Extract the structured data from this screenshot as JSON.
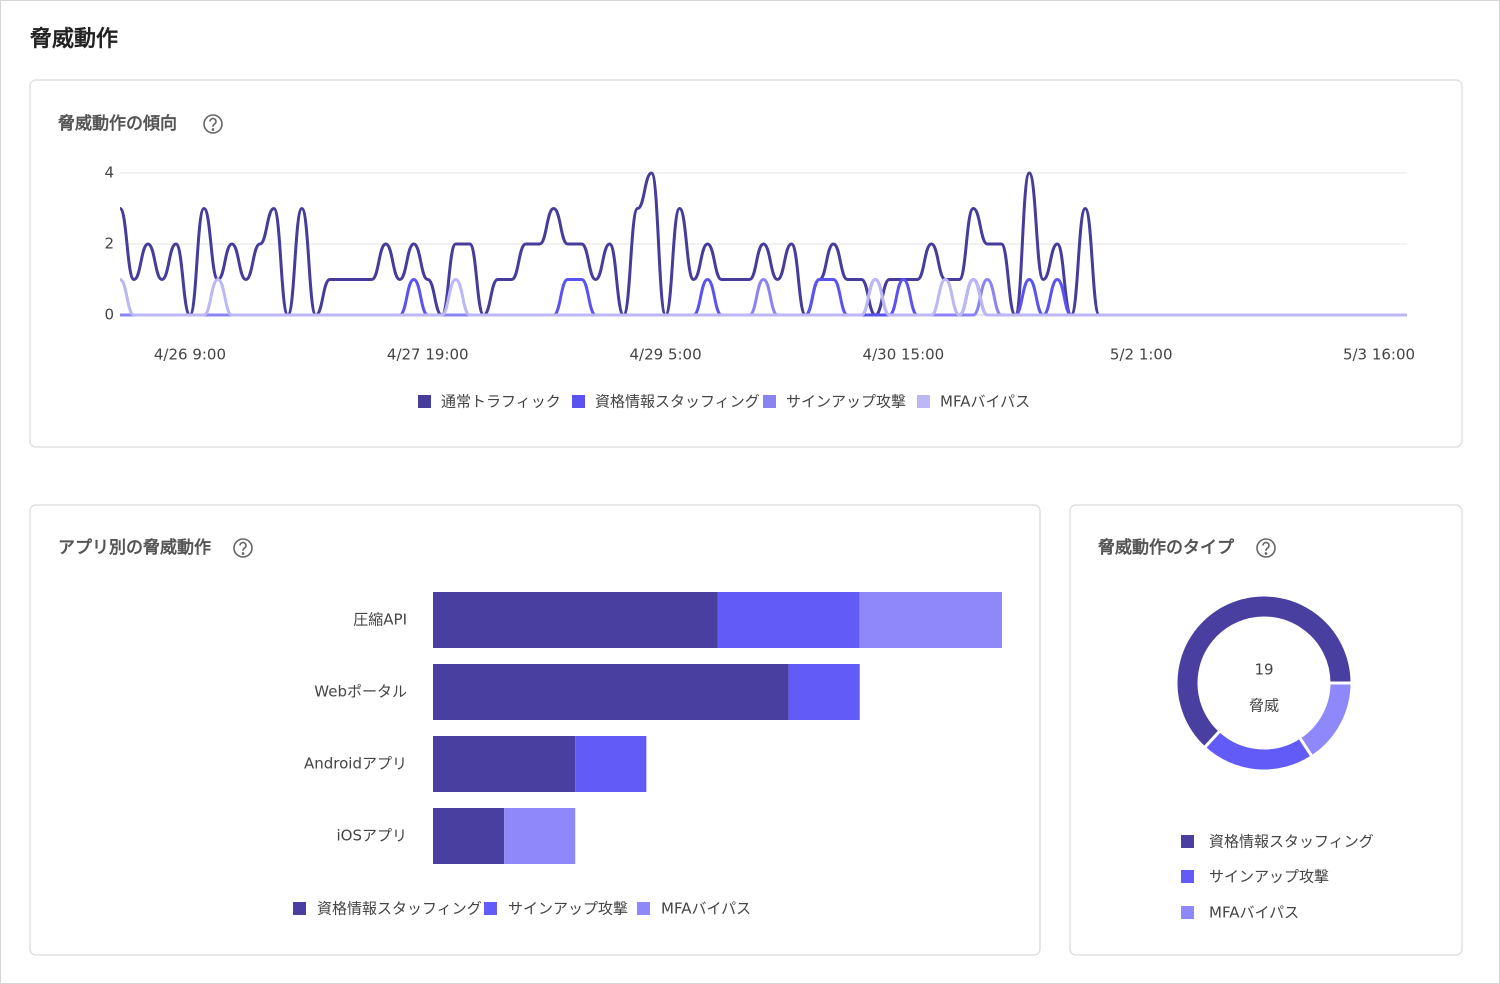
{
  "header": {
    "title": "脅威動作"
  },
  "chart_data": [
    {
      "type": "line",
      "title": "脅威動作の傾向",
      "categories": [
        null,
        null,
        null,
        null,
        null,
        "4/26 9:00",
        null,
        null,
        null,
        null,
        null,
        null,
        null,
        null,
        null,
        null,
        null,
        null,
        null,
        null,
        null,
        null,
        "4/27 19:00",
        null,
        null,
        null,
        null,
        null,
        null,
        null,
        null,
        null,
        null,
        null,
        null,
        null,
        null,
        null,
        null,
        "4/29 5:00",
        null,
        null,
        null,
        null,
        null,
        null,
        null,
        null,
        null,
        null,
        null,
        null,
        null,
        null,
        null,
        null,
        "4/30 15:00",
        null,
        null,
        null,
        null,
        null,
        null,
        null,
        null,
        null,
        null,
        null,
        null,
        null,
        null,
        null,
        null,
        "5/2 1:00",
        null,
        null,
        null,
        null,
        null,
        null,
        null,
        null,
        null,
        null,
        null,
        null,
        null,
        null,
        null,
        null,
        "5/3 16:00",
        null,
        null
      ],
      "series": [
        {
          "name": "通常トラフィック",
          "color": "#453c9c",
          "values": [
            3,
            1,
            2,
            1,
            2,
            0,
            3,
            1,
            2,
            1,
            2,
            3,
            0,
            3,
            0,
            1,
            1,
            1,
            1,
            2,
            1,
            2,
            1,
            0,
            2,
            2,
            0,
            1,
            1,
            2,
            2,
            3,
            2,
            2,
            1,
            2,
            0,
            3,
            4,
            0,
            3,
            1,
            2,
            1,
            1,
            1,
            2,
            1,
            2,
            0,
            1,
            2,
            1,
            1,
            0,
            1,
            1,
            1,
            2,
            1,
            1,
            3,
            2,
            2,
            0,
            4,
            1,
            2,
            0,
            3,
            0,
            0,
            0,
            0,
            0,
            0,
            0,
            0,
            0,
            0,
            0,
            0,
            0,
            0,
            0,
            0,
            0,
            0,
            0,
            0,
            0,
            0,
            0
          ]
        },
        {
          "name": "資格情報スタッフィング",
          "color": "#5a53f0",
          "values": [
            0,
            0,
            0,
            0,
            0,
            0,
            0,
            0,
            0,
            0,
            0,
            0,
            0,
            0,
            0,
            0,
            0,
            0,
            0,
            0,
            0,
            1,
            0,
            0,
            0,
            0,
            0,
            0,
            0,
            0,
            0,
            0,
            1,
            1,
            0,
            0,
            0,
            0,
            0,
            0,
            0,
            0,
            1,
            0,
            0,
            0,
            0,
            0,
            0,
            0,
            1,
            1,
            0,
            0,
            0,
            0,
            1,
            0,
            0,
            0,
            0,
            1,
            0,
            0,
            0,
            1,
            0,
            1,
            0,
            0,
            0,
            0,
            0,
            0,
            0,
            0,
            0,
            0,
            0,
            0,
            0,
            0,
            0,
            0,
            0,
            0,
            0,
            0,
            0,
            0,
            0,
            0,
            0
          ]
        },
        {
          "name": "サインアップ攻撃",
          "color": "#8a84f3",
          "values": [
            0,
            0,
            0,
            0,
            0,
            0,
            0,
            0,
            0,
            0,
            0,
            0,
            0,
            0,
            0,
            0,
            0,
            0,
            0,
            0,
            0,
            0,
            0,
            0,
            0,
            0,
            0,
            0,
            0,
            0,
            0,
            0,
            0,
            0,
            0,
            0,
            0,
            0,
            0,
            0,
            0,
            0,
            0,
            0,
            0,
            0,
            1,
            0,
            0,
            0,
            0,
            0,
            0,
            0,
            1,
            0,
            0,
            0,
            0,
            0,
            0,
            0,
            1,
            0,
            0,
            0,
            0,
            0,
            0,
            0,
            0,
            0,
            0,
            0,
            0,
            0,
            0,
            0,
            0,
            0,
            0,
            0,
            0,
            0,
            0,
            0,
            0,
            0,
            0,
            0,
            0,
            0,
            0
          ]
        },
        {
          "name": "MFAバイパス",
          "color": "#bcb7f5",
          "values": [
            1,
            0,
            0,
            0,
            0,
            0,
            0,
            1,
            0,
            0,
            0,
            0,
            0,
            0,
            0,
            0,
            0,
            0,
            0,
            0,
            0,
            0,
            0,
            0,
            1,
            0,
            0,
            0,
            0,
            0,
            0,
            0,
            0,
            0,
            0,
            0,
            0,
            0,
            0,
            0,
            0,
            0,
            0,
            0,
            0,
            0,
            0,
            0,
            0,
            0,
            0,
            0,
            0,
            0,
            1,
            0,
            0,
            0,
            0,
            1,
            0,
            1,
            0,
            0,
            0,
            0,
            0,
            0,
            0,
            0,
            0,
            0,
            0,
            0,
            0,
            0,
            0,
            0,
            0,
            0,
            0,
            0,
            0,
            0,
            0,
            0,
            0,
            0,
            0,
            0,
            0,
            0,
            0
          ]
        }
      ],
      "ylim": [
        0,
        4
      ],
      "yticks": [
        0,
        2,
        4
      ],
      "grid": true
    },
    {
      "type": "stacked-bar",
      "title": "アプリ別の脅威動作",
      "orientation": "horizontal",
      "categories": [
        "圧縮API",
        "Webポータル",
        "Androidアプリ",
        "iOSアプリ"
      ],
      "series": [
        {
          "name": "資格情報スタッフィング",
          "color": "#483fa0",
          "values": [
            4,
            5,
            2,
            1
          ]
        },
        {
          "name": "サインアップ攻撃",
          "color": "#625bf8",
          "values": [
            2,
            1,
            1,
            0
          ]
        },
        {
          "name": "MFAバイパス",
          "color": "#8f88fb",
          "values": [
            2,
            0,
            0,
            1
          ]
        }
      ],
      "xlim": [
        0,
        8
      ]
    },
    {
      "type": "donut",
      "title": "脅威動作のタイプ",
      "categories": [
        "資格情報スタッフィング",
        "サインアップ攻撃",
        "MFAバイパス"
      ],
      "values": [
        12,
        4,
        3
      ],
      "colors": [
        "#483fa0",
        "#625bf8",
        "#8f88fb"
      ],
      "total": 19,
      "center_label": "脅威"
    }
  ]
}
